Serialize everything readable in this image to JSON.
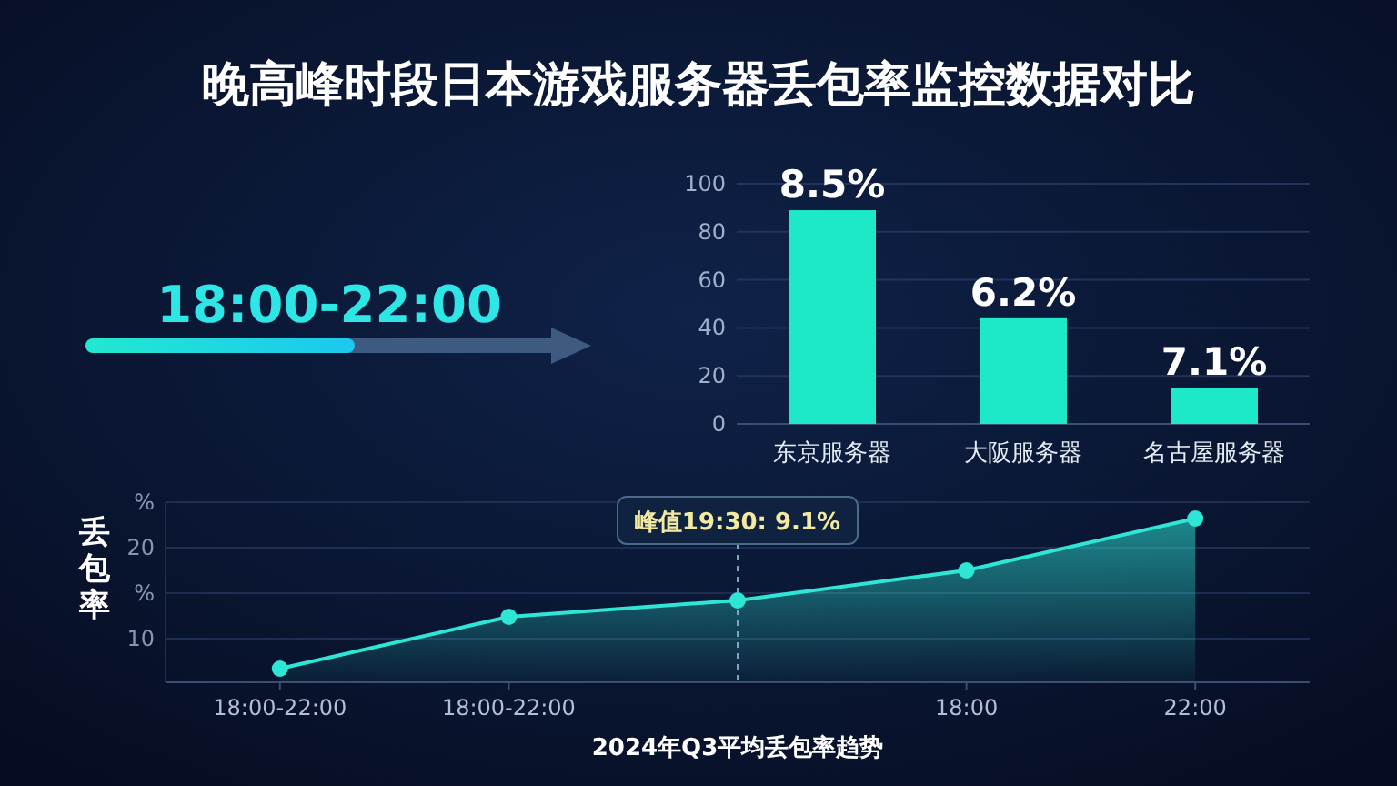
{
  "chart_data": [
    {
      "type": "bar",
      "title": "晚高峰时段日本游戏服务器丢包率监控数据对比",
      "categories": [
        "东京服务器",
        "大阪服务器",
        "名古屋服务器"
      ],
      "values": [
        89,
        44,
        15
      ],
      "color": "#1de9c8",
      "ylim": [
        0,
        100
      ],
      "yticks": [
        0,
        20,
        40,
        60,
        80,
        100
      ],
      "grid": "y",
      "annotations": [
        "18:00-22:00",
        {
          "text": "8.5%",
          "x": "东京服务器",
          "y": 89
        },
        {
          "text": "6.2%",
          "x": "大阪服务器",
          "y": 44
        },
        {
          "text": "7.1%",
          "x": "名古屋服务器",
          "y": 15
        }
      ]
    },
    {
      "type": "area",
      "categories": [
        "18:00-22:00",
        "18:00-22:00",
        null,
        "18:00",
        "22:00"
      ],
      "values": [
        6.7,
        12.4,
        14.2,
        17.5,
        23.2
      ],
      "color": "#2ee6d6",
      "marker": "circle",
      "ylim": [
        5.2,
        25
      ],
      "yticks": [
        {
          "value": 10,
          "label": "10"
        },
        {
          "value": 15,
          "label": "%"
        },
        {
          "value": 20,
          "label": "20"
        },
        {
          "value": 25,
          "label": "%"
        }
      ],
      "grid": "y",
      "xlabel": "2024年Q3平均丢包率趋势",
      "ylabel": "丢包率",
      "annotations": [
        {
          "text": "峰值19:30: 9.1%",
          "y": 14.2
        }
      ]
    }
  ]
}
